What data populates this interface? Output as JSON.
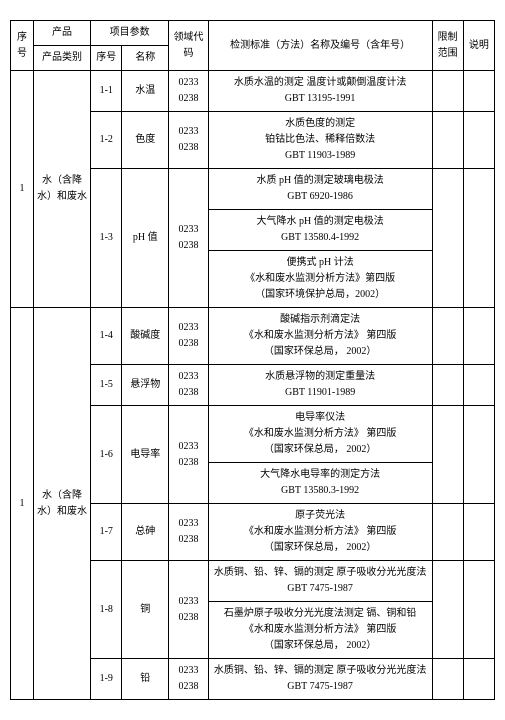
{
  "headers": {
    "seq": "序号",
    "product": "产品",
    "productCat": "产品类别",
    "paramGroup": "项目参数",
    "paramIdx": "序号",
    "paramName": "名称",
    "domainCode": "领域代码",
    "standard": "检测标准（方法）名称及编号（含年号）",
    "limit": "限制范围",
    "note": "说明"
  },
  "seq1": "1",
  "cat1": "水（含降水）和废水",
  "r1": {
    "idx": "1-1",
    "name": "水温",
    "code1": "0233",
    "code2": "0238",
    "std": "水质水温的测定 温度计或颠倒温度计法\nGBT 13195-1991"
  },
  "r2": {
    "idx": "1-2",
    "name": "色度",
    "code1": "0233",
    "code2": "0238",
    "std": "水质色度的测定\n铂钴比色法、稀释倍数法\nGBT 11903-1989"
  },
  "r3": {
    "idx": "1-3",
    "name": "pH 值",
    "code1": "0233",
    "code2": "0238",
    "std1": "水质 pH 值的测定玻璃电极法\nGBT 6920-1986",
    "std2": "大气降水 pH 值的测定电极法\nGBT 13580.4-1992",
    "std3": "便携式 pH 计法\n《水和废水监测分析方法》第四版\n（国家环境保护总局，2002）"
  },
  "r4": {
    "idx": "1-4",
    "name": "酸碱度",
    "code1": "0233",
    "code2": "0238",
    "std": "酸碱指示剂滴定法\n《水和废水监测分析方法》 第四版\n（国家环保总局，        2002）"
  },
  "r5": {
    "idx": "1-5",
    "name": "悬浮物",
    "code1": "0233",
    "code2": "0238",
    "std": "水质悬浮物的测定重量法\nGBT 11901-1989"
  },
  "r6": {
    "idx": "1-6",
    "name": "电导率",
    "code1": "0233",
    "code2": "0238",
    "std1": "电导率仪法\n《水和废水监测分析方法》 第四版\n（国家环保总局，        2002）",
    "std2": "大气降水电导率的测定方法\nGBT 13580.3-1992"
  },
  "seq2": "1",
  "cat2": "水（含降水）和废水",
  "r7": {
    "idx": "1-7",
    "name": "总砷",
    "code1": "0233",
    "code2": "0238",
    "std": "原子荧光法\n《水和废水监测分析方法》 第四版\n（国家环保总局，        2002）"
  },
  "r8": {
    "idx": "1-8",
    "name": "铜",
    "code1": "0233",
    "code2": "0238",
    "std1": "水质铜、铅、锌、镉的测定 原子吸收分光光度法\nGBT 7475-1987",
    "std2": "石墨炉原子吸收分光光度法测定 镉、铜和铅\n《水和废水监测分析方法》 第四版\n（国家环保总局，        2002）"
  },
  "r9": {
    "idx": "1-9",
    "name": "铅",
    "code1": "0233",
    "code2": "0238",
    "std": "水质铜、铅、锌、镉的测定 原子吸收分光光度法\nGBT 7475-1987"
  }
}
